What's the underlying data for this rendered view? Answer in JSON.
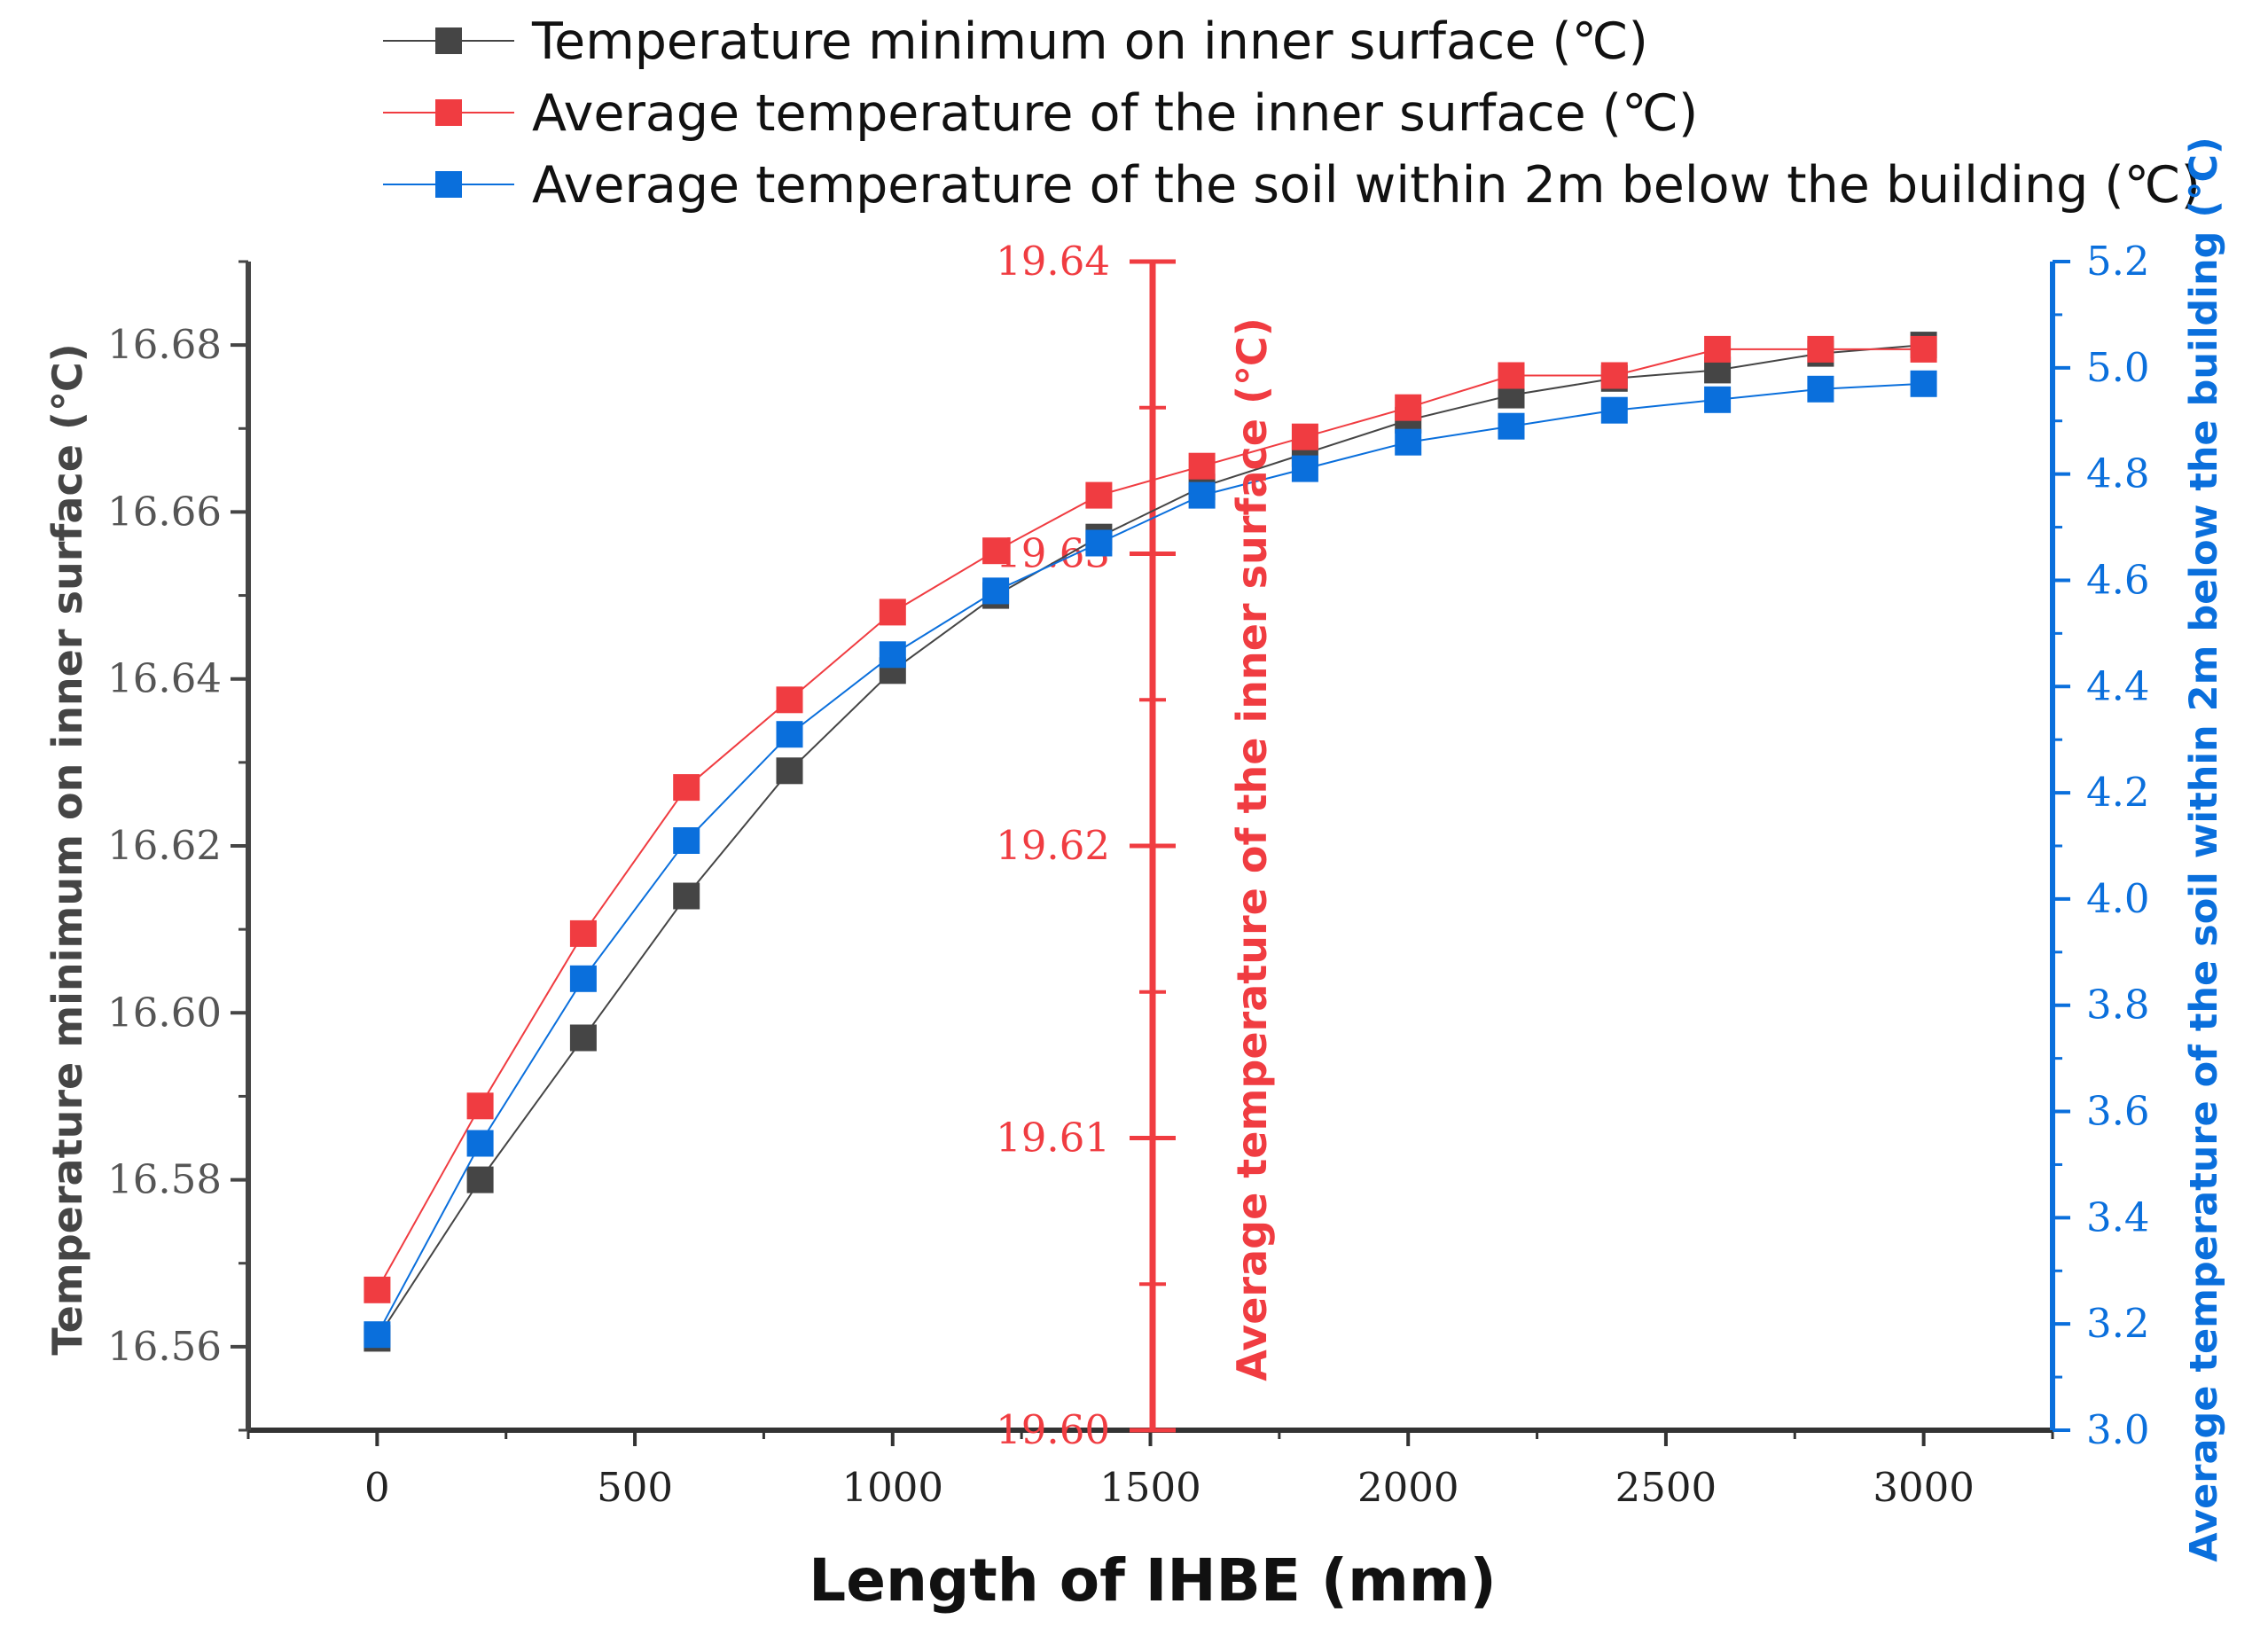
{
  "chart_data": {
    "type": "line",
    "xlabel": "Length of IHBE (mm)",
    "x": [
      0,
      200,
      400,
      600,
      800,
      1000,
      1200,
      1400,
      1600,
      1800,
      2000,
      2200,
      2400,
      2600,
      2800,
      3000
    ],
    "xlim": [
      -250,
      3250
    ],
    "xticks": [
      0,
      500,
      1000,
      1500,
      2000,
      2500,
      3000
    ],
    "series": [
      {
        "name": "Temperature minimum on inner surface (℃)",
        "axis": "left",
        "color": "#454545",
        "values": [
          16.561,
          16.58,
          16.597,
          16.614,
          16.629,
          16.641,
          16.65,
          16.657,
          16.663,
          16.667,
          16.671,
          16.674,
          16.676,
          16.677,
          16.679,
          16.68
        ]
      },
      {
        "name": "Average temperature of the inner surface (℃)",
        "axis": "middle",
        "color": "#f03c41",
        "values": [
          19.6048,
          19.6111,
          19.617,
          19.622,
          19.625,
          19.628,
          19.6301,
          19.632,
          19.633,
          19.634,
          19.635,
          19.6361,
          19.6361,
          19.637,
          19.637,
          19.637
        ]
      },
      {
        "name": "Average temperature of the soil within 2m below the building (℃)",
        "axis": "right",
        "color": "#0a6fdc",
        "values": [
          3.18,
          3.54,
          3.85,
          4.11,
          4.31,
          4.46,
          4.58,
          4.67,
          4.76,
          4.81,
          4.86,
          4.89,
          4.92,
          4.94,
          4.96,
          4.97
        ]
      }
    ],
    "axes": {
      "left": {
        "label": "Temperature minimum on inner surface (℃)",
        "ylim": [
          16.55,
          16.69
        ],
        "ticks": [
          16.56,
          16.58,
          16.6,
          16.62,
          16.64,
          16.66,
          16.68
        ],
        "tick_labels": [
          "16.56",
          "16.58",
          "16.60",
          "16.62",
          "16.64",
          "16.66",
          "16.68"
        ],
        "color": "#454545"
      },
      "middle": {
        "label": "Average temperature of the inner surface (℃)",
        "ylim": [
          19.6,
          19.64
        ],
        "ticks": [
          19.6,
          19.61,
          19.62,
          19.63,
          19.64
        ],
        "tick_labels": [
          "19.60",
          "19.61",
          "19.62",
          "19.63",
          "19.64"
        ],
        "color": "#f03c41"
      },
      "right": {
        "label": "Average temperature of the soil within 2m below the building (℃)",
        "ylim": [
          3.0,
          5.2
        ],
        "ticks": [
          3.0,
          3.2,
          3.4,
          3.6,
          3.8,
          4.0,
          4.2,
          4.4,
          4.6,
          4.8,
          5.0,
          5.2
        ],
        "tick_labels": [
          "3.0",
          "3.2",
          "3.4",
          "3.6",
          "3.8",
          "4.0",
          "4.2",
          "4.4",
          "4.6",
          "4.8",
          "5.0",
          "5.2"
        ],
        "color": "#0a6fdc"
      }
    },
    "legend_position": "top",
    "grid": false
  }
}
